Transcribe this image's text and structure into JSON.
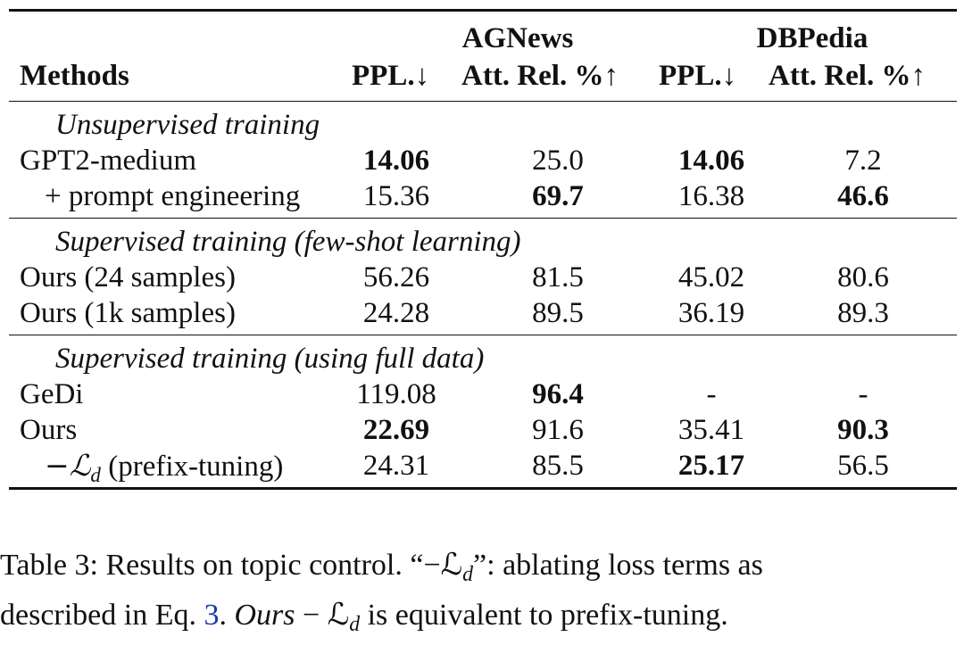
{
  "table": {
    "group_headers": [
      "AGNews",
      "DBPedia"
    ],
    "column_headers": [
      "Methods",
      "PPL.↓",
      "Att. Rel. %↑",
      "PPL.↓",
      "Att. Rel. %↑"
    ],
    "sections": [
      {
        "title": "Unsupervised training",
        "rows": [
          {
            "method": "GPT2-medium",
            "ag_ppl": "14.06",
            "ag_att": "25.0",
            "db_ppl": "14.06",
            "db_att": "7.2"
          },
          {
            "method": "+ prompt engineering",
            "ag_ppl": "15.36",
            "ag_att": "69.7",
            "db_ppl": "16.38",
            "db_att": "46.6"
          }
        ]
      },
      {
        "title": "Supervised training (few-shot learning)",
        "rows": [
          {
            "method": "Ours (24 samples)",
            "ag_ppl": "56.26",
            "ag_att": "81.5",
            "db_ppl": "45.02",
            "db_att": "80.6"
          },
          {
            "method": "Ours (1k samples)",
            "ag_ppl": "24.28",
            "ag_att": "89.5",
            "db_ppl": "36.19",
            "db_att": "89.3"
          }
        ]
      },
      {
        "title": "Supervised training (using full data)",
        "rows": [
          {
            "method": "GeDi",
            "ag_ppl": "119.08",
            "ag_att": "96.4",
            "db_ppl": "-",
            "db_att": "-"
          },
          {
            "method": "Ours",
            "ag_ppl": "22.69",
            "ag_att": "91.6",
            "db_ppl": "35.41",
            "db_att": "90.3"
          },
          {
            "method": "−ℒ",
            "method_sub": "d",
            "method_suffix": " (prefix-tuning)",
            "ag_ppl": "24.31",
            "ag_att": "85.5",
            "db_ppl": "25.17",
            "db_att": "56.5"
          }
        ]
      }
    ]
  },
  "caption": {
    "line1_prefix": "Table 3: Results on topic control. “−ℒ",
    "line1_sub": "d",
    "line1_suffix": "”: ablating loss terms as",
    "line2_prefix": "described in Eq. ",
    "line2_ref": "3",
    "line2_mid": ". ",
    "line2_math": "Ours",
    "line2_math2": " − ℒ",
    "line2_sub": "d",
    "line2_suffix": " is equivalent to prefix-tuning."
  }
}
